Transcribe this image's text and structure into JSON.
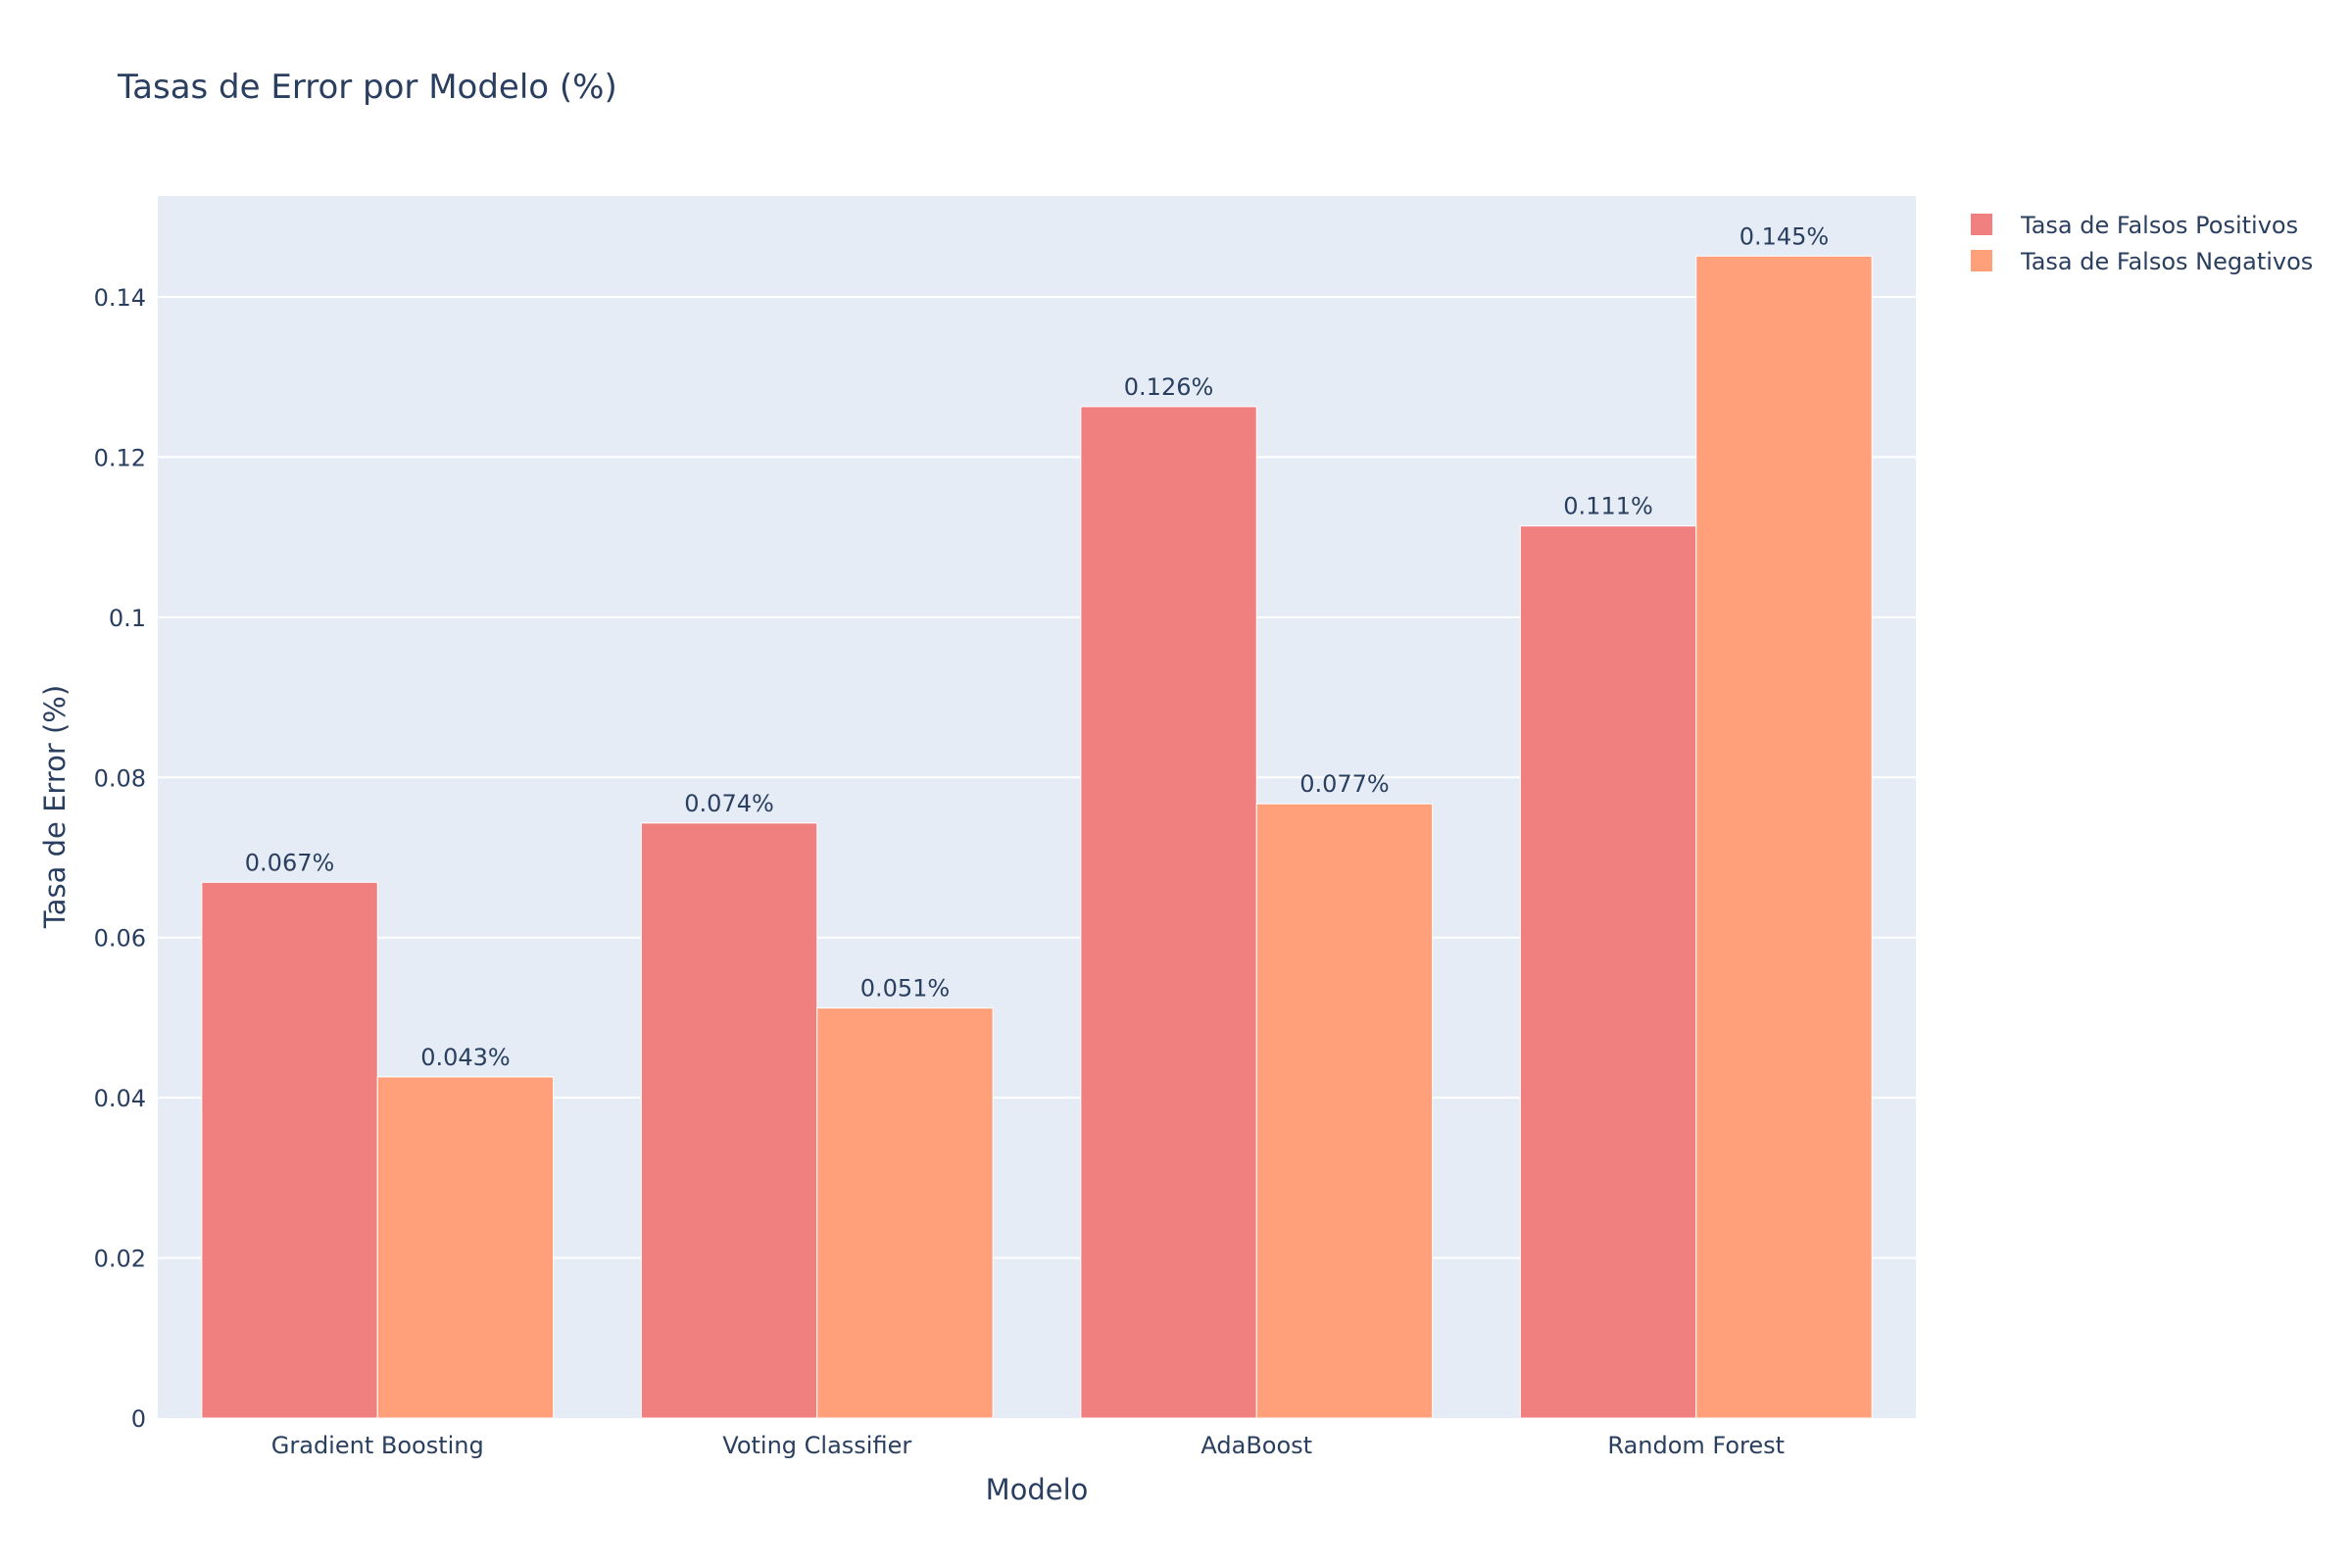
{
  "chart_data": {
    "type": "bar",
    "title": "Tasas de Error por Modelo (%)",
    "xlabel": "Modelo",
    "ylabel": "Tasa de Error (%)",
    "categories": [
      "Gradient Boosting",
      "Voting Classifier",
      "AdaBoost",
      "Random Forest"
    ],
    "series": [
      {
        "name": "Tasa de Falsos Positivos",
        "color": "#f08080",
        "values": [
          0.0669,
          0.0743,
          0.1263,
          0.1114
        ],
        "labels": [
          "0.067%",
          "0.074%",
          "0.126%",
          "0.111%"
        ]
      },
      {
        "name": "Tasa de Falsos Negativos",
        "color": "#ffa07a",
        "values": [
          0.0426,
          0.0512,
          0.0767,
          0.1451
        ],
        "labels": [
          "0.043%",
          "0.051%",
          "0.077%",
          "0.145%"
        ]
      }
    ],
    "ylim": [
      0,
      0.1526
    ],
    "yticks": [
      0,
      0.02,
      0.04,
      0.06,
      0.08,
      0.1,
      0.12,
      0.14
    ],
    "ytick_labels": [
      "0",
      "0.02",
      "0.04",
      "0.06",
      "0.08",
      "0.1",
      "0.12",
      "0.14"
    ],
    "grid": true,
    "legend_position": "top-right",
    "plot_background": "#e5ecf6"
  }
}
